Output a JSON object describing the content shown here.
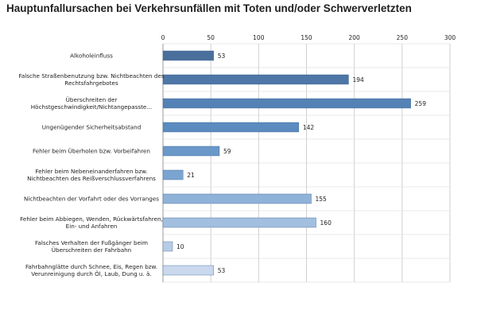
{
  "chart_data": {
    "type": "bar",
    "orientation": "horizontal",
    "title": "Hauptunfallursachen bei Verkehrsunfällen mit Toten und/oder Schwerverletzten",
    "xlim": [
      0,
      300
    ],
    "xticks": [
      "0",
      "50",
      "100",
      "150",
      "200",
      "250",
      "300"
    ],
    "grid": true,
    "categories": [
      [
        "Alkoholeinfluss"
      ],
      [
        "Falsche Straßenbenutzung bzw. Nichtbeachten des",
        "Rechtsfahrgebotes"
      ],
      [
        "Überschreiten der",
        "Höchstgeschwindigkeit/Nichtangepasste..."
      ],
      [
        "Ungenügender Sicherheitsabstand"
      ],
      [
        "Fehler beim Überholen bzw. Vorbeifahren"
      ],
      [
        "Fehler beim Nebeneinanderfahren bzw.",
        "Nichtbeachten des Reißverschlussverfahrens"
      ],
      [
        "Nichtbeachten der Vorfahrt oder des Vorranges"
      ],
      [
        "Fehler beim Abbiegen, Wenden, Rückwärtsfahren,",
        "Ein- und Anfahren"
      ],
      [
        "Falsches Verhalten der Fußgänger beim",
        "Überschreiten der Fahrbahn"
      ],
      [
        "Fahrbahnglätte durch Schnee, Eis, Regen bzw.",
        "Verunreinigung durch Öl, Laub, Dung u. ä."
      ]
    ],
    "values": [
      53,
      194,
      259,
      142,
      59,
      21,
      155,
      160,
      10,
      53
    ],
    "colors": [
      "#4a6f9c",
      "#4e76a6",
      "#5582b4",
      "#5b8bbf",
      "#6a98c9",
      "#7aa5d1",
      "#8fb2d8",
      "#a2bfdf",
      "#b7cde6",
      "#c9d8ed"
    ]
  }
}
